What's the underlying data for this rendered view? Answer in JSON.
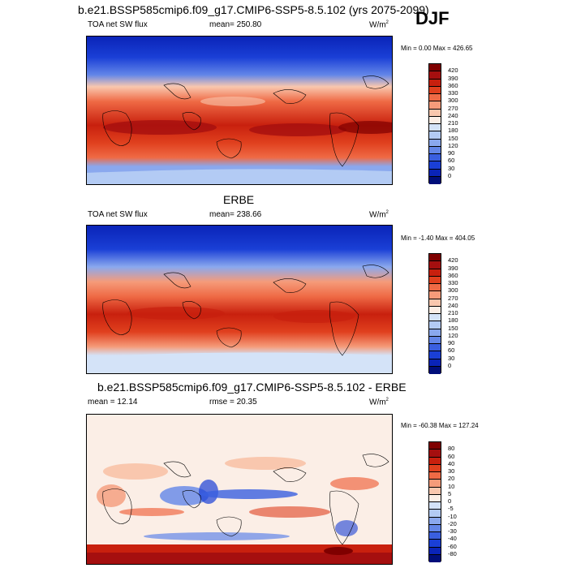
{
  "season": "DJF",
  "panels": [
    {
      "title": "b.e21.BSSP585cmip6.f09_g17.CMIP6-SSP5-8.5.102 (yrs 2075-2099)",
      "left_label": "TOA net SW flux",
      "center_label": "mean= 250.80",
      "units": "W/m",
      "units_sup": "2",
      "minmax": "Min =   0.00 Max = 426.65",
      "cbar_labels": [
        "420",
        "390",
        "360",
        "330",
        "300",
        "270",
        "240",
        "210",
        "180",
        "150",
        "120",
        "90",
        "60",
        "30",
        "0"
      ],
      "cbar_colors": [
        "#7f0000",
        "#a50f0f",
        "#c8200e",
        "#e0401e",
        "#ef6a45",
        "#f59b7a",
        "#f9c7ae",
        "#fbeee6",
        "#d4e3f8",
        "#b3cbf4",
        "#8aa8ee",
        "#6386e8",
        "#3a5fe0",
        "#1a3fd6",
        "#0a24b8",
        "#000e7a"
      ]
    },
    {
      "title": "ERBE",
      "left_label": "TOA net SW flux",
      "center_label": "mean= 238.66",
      "units": "W/m",
      "units_sup": "2",
      "minmax": "Min =  -1.40 Max = 404.05",
      "cbar_labels": [
        "420",
        "390",
        "360",
        "330",
        "300",
        "270",
        "240",
        "210",
        "180",
        "150",
        "120",
        "90",
        "60",
        "30",
        "0"
      ],
      "cbar_colors": [
        "#7f0000",
        "#a50f0f",
        "#c8200e",
        "#e0401e",
        "#ef6a45",
        "#f59b7a",
        "#f9c7ae",
        "#fbeee6",
        "#d4e3f8",
        "#b3cbf4",
        "#8aa8ee",
        "#6386e8",
        "#3a5fe0",
        "#1a3fd6",
        "#0a24b8",
        "#000e7a"
      ]
    },
    {
      "title": "b.e21.BSSP585cmip6.f09_g17.CMIP6-SSP5-8.5.102 - ERBE",
      "left_label": "mean =  12.14",
      "center_label": "rmse =  20.35",
      "units": "W/m",
      "units_sup": "2",
      "minmax": "Min = -60.38 Max = 127.24",
      "cbar_labels": [
        "80",
        "60",
        "40",
        "30",
        "20",
        "10",
        "5",
        "0",
        "-5",
        "-10",
        "-20",
        "-30",
        "-40",
        "-60",
        "-80"
      ],
      "cbar_colors": [
        "#7f0000",
        "#a50f0f",
        "#c8200e",
        "#e0401e",
        "#ef6a45",
        "#f59b7a",
        "#f9c7ae",
        "#fbeee6",
        "#d4e3f8",
        "#b3cbf4",
        "#8aa8ee",
        "#6386e8",
        "#3a5fe0",
        "#1a3fd6",
        "#0a24b8",
        "#000e7a"
      ]
    }
  ]
}
